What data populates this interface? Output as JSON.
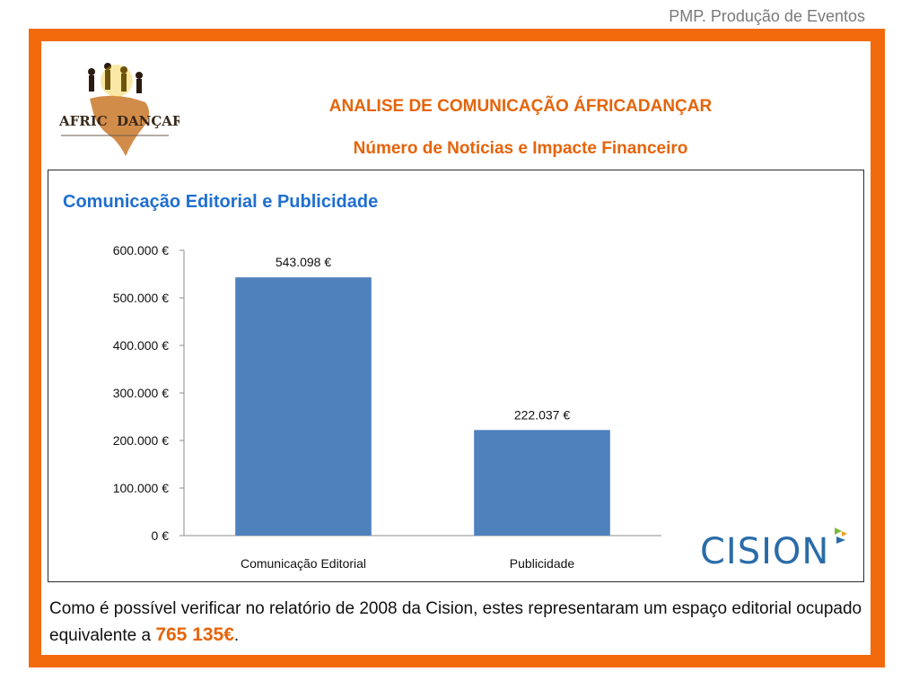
{
  "header": {
    "text": "PMP. Produção de Eventos"
  },
  "heading": {
    "title": "ANALISE DE COMUNICAÇÃO ÁFRICADANÇAR",
    "subtitle": "Número de Noticias e Impacte Financeiro"
  },
  "logo": {
    "text": "AFRICADANÇAR"
  },
  "cision_logo": {
    "text": "CISION"
  },
  "colors": {
    "accent": "#f26a0c",
    "bar": "#4f81bd",
    "chart_title": "#1f6fd0"
  },
  "caption": {
    "text_before": "Como é possível verificar no relatório de 2008 da Cision, estes representaram um espaço editorial ocupado equivalente a ",
    "highlight": "765 135€",
    "text_after": "."
  },
  "chart_data": {
    "type": "bar",
    "title": "Comunicação Editorial e Publicidade",
    "categories": [
      "Comunicação Editorial",
      "Publicidade"
    ],
    "values": [
      543098,
      222037
    ],
    "data_labels": [
      "543.098 €",
      "222.037 €"
    ],
    "ylim": [
      0,
      600000
    ],
    "yticks": [
      0,
      100000,
      200000,
      300000,
      400000,
      500000,
      600000
    ],
    "ytick_labels": [
      "0 €",
      "100.000 €",
      "200.000 €",
      "300.000 €",
      "400.000 €",
      "500.000 €",
      "600.000 €"
    ],
    "grid": false,
    "legend": "none"
  }
}
